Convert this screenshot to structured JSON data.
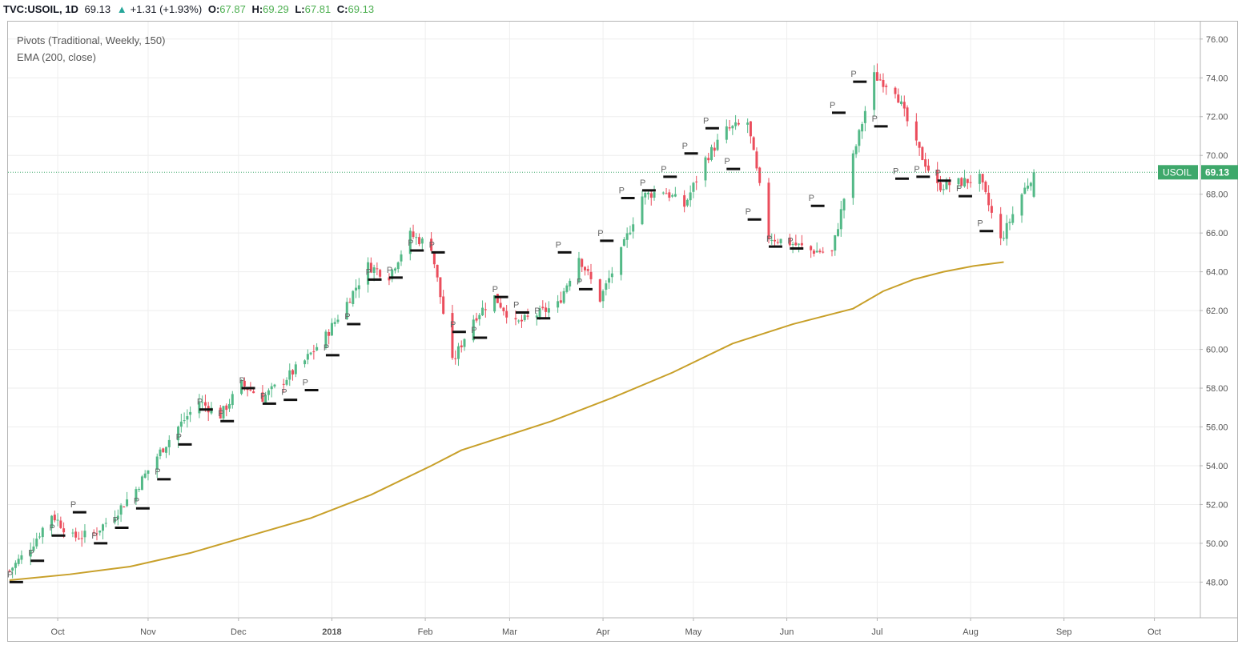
{
  "header": {
    "symbol": "TVC:USOIL, 1D",
    "last": "69.13",
    "change_arrow": "▲",
    "change": "+1.31 (+1.93%)",
    "o_label": "O:",
    "o": "67.87",
    "h_label": "H:",
    "h": "69.29",
    "l_label": "L:",
    "l": "67.81",
    "c_label": "C:",
    "c": "69.13"
  },
  "indicators": [
    "Pivots (Traditional, Weekly, 150)",
    "EMA (200, close)"
  ],
  "price_tag": {
    "label": "USOIL",
    "value": "69.13",
    "price": 69.13
  },
  "colors": {
    "up": "#53b987",
    "down": "#eb4d5c",
    "ema": "#c8a02a",
    "pivot": "#111111",
    "tag": "#3ea86b"
  },
  "chart_data": {
    "type": "candlestick",
    "y_ticks": [
      "76.00",
      "74.00",
      "72.00",
      "70.00",
      "68.00",
      "66.00",
      "64.00",
      "62.00",
      "60.00",
      "58.00",
      "56.00",
      "54.00",
      "52.00",
      "50.00",
      "48.00"
    ],
    "ylim": [
      46.2,
      76.9
    ],
    "x_labels": [
      "Oct",
      "Nov",
      "Dec",
      "2018",
      "Feb",
      "Mar",
      "Apr",
      "May",
      "Jun",
      "Jul",
      "Aug",
      "Sep",
      "Oct"
    ],
    "x_label_days": [
      16,
      46,
      76,
      107,
      138,
      166,
      197,
      227,
      258,
      288,
      319,
      350,
      380
    ],
    "xlim": [
      -0.5,
      395
    ],
    "pivot_marker": "P",
    "weekly_close": [
      [
        0,
        48.6
      ],
      [
        7,
        49.8
      ],
      [
        14,
        51.5
      ],
      [
        21,
        50.3
      ],
      [
        28,
        50.5
      ],
      [
        35,
        51.5
      ],
      [
        42,
        52.8
      ],
      [
        49,
        54.5
      ],
      [
        56,
        56.0
      ],
      [
        63,
        57.3
      ],
      [
        70,
        56.6
      ],
      [
        77,
        58.2
      ],
      [
        84,
        57.5
      ],
      [
        91,
        58.4
      ],
      [
        98,
        59.4
      ],
      [
        105,
        60.7
      ],
      [
        112,
        62.4
      ],
      [
        119,
        64.3
      ],
      [
        126,
        63.8
      ],
      [
        133,
        65.9
      ],
      [
        140,
        65.3
      ],
      [
        147,
        59.3
      ],
      [
        154,
        61.6
      ],
      [
        161,
        62.7
      ],
      [
        168,
        61.3
      ],
      [
        175,
        61.8
      ],
      [
        182,
        62.3
      ],
      [
        189,
        64.8
      ],
      [
        196,
        62.6
      ],
      [
        203,
        65.0
      ],
      [
        210,
        67.9
      ],
      [
        217,
        68.2
      ],
      [
        224,
        67.4
      ],
      [
        231,
        69.8
      ],
      [
        238,
        71.3
      ],
      [
        245,
        71.7
      ],
      [
        252,
        65.8
      ],
      [
        259,
        65.5
      ],
      [
        266,
        65.1
      ],
      [
        273,
        65.0
      ],
      [
        280,
        69.9
      ],
      [
        287,
        74.1
      ],
      [
        294,
        73.4
      ],
      [
        301,
        70.5
      ],
      [
        308,
        68.4
      ],
      [
        315,
        68.6
      ],
      [
        322,
        68.8
      ],
      [
        329,
        65.6
      ],
      [
        336,
        68.0
      ],
      [
        340,
        69.13
      ]
    ],
    "pivots": [
      [
        0,
        48.0
      ],
      [
        7,
        49.1
      ],
      [
        14,
        50.4
      ],
      [
        21,
        51.6
      ],
      [
        28,
        50.0
      ],
      [
        35,
        50.8
      ],
      [
        42,
        51.8
      ],
      [
        49,
        53.3
      ],
      [
        56,
        55.1
      ],
      [
        63,
        56.9
      ],
      [
        70,
        56.3
      ],
      [
        77,
        58.0
      ],
      [
        84,
        57.2
      ],
      [
        91,
        57.4
      ],
      [
        98,
        57.9
      ],
      [
        105,
        59.7
      ],
      [
        112,
        61.3
      ],
      [
        119,
        63.6
      ],
      [
        126,
        63.7
      ],
      [
        133,
        65.1
      ],
      [
        140,
        65.0
      ],
      [
        147,
        60.9
      ],
      [
        154,
        60.6
      ],
      [
        161,
        62.7
      ],
      [
        168,
        61.9
      ],
      [
        175,
        61.6
      ],
      [
        182,
        65.0
      ],
      [
        189,
        63.1
      ],
      [
        196,
        65.6
      ],
      [
        203,
        67.8
      ],
      [
        210,
        68.2
      ],
      [
        217,
        68.9
      ],
      [
        224,
        70.1
      ],
      [
        231,
        71.4
      ],
      [
        238,
        69.3
      ],
      [
        245,
        66.7
      ],
      [
        252,
        65.3
      ],
      [
        259,
        65.2
      ],
      [
        266,
        67.4
      ],
      [
        273,
        72.2
      ],
      [
        280,
        73.8
      ],
      [
        287,
        71.5
      ],
      [
        294,
        68.8
      ],
      [
        301,
        68.9
      ],
      [
        308,
        68.7
      ],
      [
        315,
        67.9
      ],
      [
        322,
        66.1
      ]
    ],
    "ema": [
      [
        0,
        48.1
      ],
      [
        20,
        48.4
      ],
      [
        40,
        48.8
      ],
      [
        60,
        49.5
      ],
      [
        80,
        50.4
      ],
      [
        100,
        51.3
      ],
      [
        120,
        52.5
      ],
      [
        140,
        54.0
      ],
      [
        150,
        54.8
      ],
      [
        160,
        55.3
      ],
      [
        180,
        56.3
      ],
      [
        200,
        57.5
      ],
      [
        220,
        58.8
      ],
      [
        240,
        60.3
      ],
      [
        260,
        61.3
      ],
      [
        280,
        62.1
      ],
      [
        290,
        63.0
      ],
      [
        300,
        63.6
      ],
      [
        310,
        64.0
      ],
      [
        320,
        64.3
      ],
      [
        330,
        64.5
      ]
    ],
    "last_day": 340
  }
}
